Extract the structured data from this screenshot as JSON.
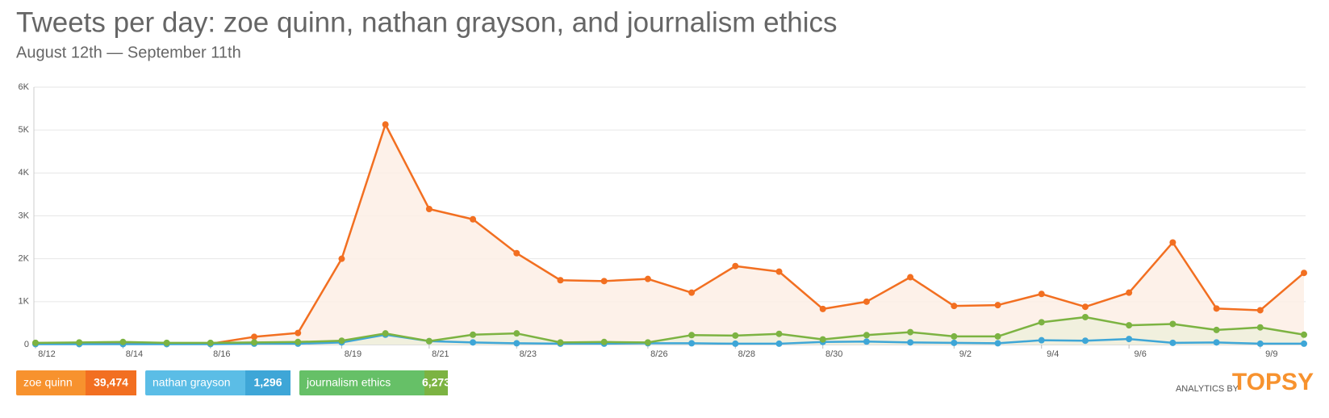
{
  "chart_data": {
    "type": "line",
    "title": "Tweets per day: zoe quinn, nathan grayson, and journalism ethics",
    "subtitle": "August 12th — September 11th",
    "categories": [
      "8/12",
      null,
      "8/14",
      null,
      "8/16",
      null,
      null,
      "8/19",
      null,
      "8/21",
      null,
      "8/23",
      null,
      null,
      "8/26",
      null,
      "8/28",
      null,
      "8/30",
      null,
      null,
      "9/2",
      null,
      "9/4",
      null,
      "9/6",
      null,
      null,
      "9/9",
      null
    ],
    "series": [
      {
        "name": "zoe quinn",
        "color": "#f26f21",
        "fill": "#fdeee5",
        "legend_color": "#f7922e",
        "total": {
          "value": 39474,
          "label": "39,474"
        },
        "values": [
          30,
          30,
          40,
          20,
          20,
          180,
          270,
          2000,
          5130,
          3160,
          2920,
          2130,
          1500,
          1480,
          1530,
          1210,
          1830,
          1700,
          830,
          1000,
          1570,
          900,
          920,
          1180,
          880,
          1210,
          2380,
          840,
          800,
          1670
        ]
      },
      {
        "name": "nathan grayson",
        "color": "#3ea6d7",
        "fill": null,
        "legend_color": "#5bbde6",
        "total": {
          "value": 1296,
          "label": "1,296"
        },
        "values": [
          10,
          10,
          10,
          10,
          10,
          20,
          20,
          50,
          230,
          80,
          50,
          30,
          20,
          20,
          30,
          30,
          20,
          20,
          60,
          70,
          50,
          40,
          30,
          100,
          90,
          130,
          40,
          50,
          20,
          20
        ]
      },
      {
        "name": "journalism ethics",
        "color": "#7cb342",
        "fill": "#eef0dc",
        "legend_color": "#66c067",
        "total": {
          "value": 6273,
          "label": "6,273"
        },
        "values": [
          40,
          50,
          60,
          40,
          40,
          50,
          60,
          90,
          260,
          80,
          230,
          260,
          50,
          60,
          50,
          220,
          210,
          250,
          120,
          220,
          290,
          190,
          190,
          520,
          640,
          450,
          480,
          340,
          400,
          230
        ]
      }
    ],
    "ylim": [
      0,
      6000
    ],
    "yticks": [
      0,
      {
        "value": 1000,
        "label": "1K"
      },
      {
        "value": 2000,
        "label": "2K"
      },
      {
        "value": 3000,
        "label": "3K"
      },
      {
        "value": 4000,
        "label": "4K"
      },
      {
        "value": 5000,
        "label": "5K"
      },
      {
        "value": 6000,
        "label": "6K"
      }
    ],
    "grid": true,
    "branding": {
      "prefix": "ANALYTICS BY",
      "name": "TOPSY"
    }
  }
}
